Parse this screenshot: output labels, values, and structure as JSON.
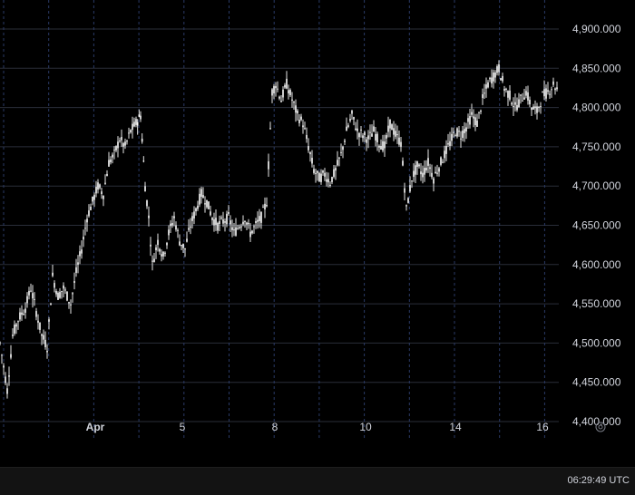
{
  "chart_data": {
    "type": "candlestick",
    "title": "",
    "xlabel": "",
    "ylabel": "",
    "y_ticks": [
      4400,
      4450,
      4500,
      4550,
      4600,
      4650,
      4700,
      4750,
      4800,
      4850,
      4900
    ],
    "y_tick_labels": [
      "4,400.000",
      "4,450.000",
      "4,500.000",
      "4,550.000",
      "4,600.000",
      "4,650.000",
      "4,700.000",
      "4,750.000",
      "4,800.000",
      "4,850.000",
      "4,900.000"
    ],
    "ylim": [
      4385,
      4915
    ],
    "x_ticks": [
      "Apr",
      "5",
      "8",
      "10",
      "14",
      "16"
    ],
    "x_tick_major": [
      "Apr"
    ],
    "xlim": [
      0,
      616
    ],
    "x_tick_positions": [
      105,
      201,
      303,
      403,
      502,
      598
    ],
    "grid": true,
    "series": [
      {
        "values": [
          {
            "t": 0,
            "c": 4500
          },
          {
            "t": 8,
            "c": 4440
          },
          {
            "t": 14,
            "c": 4510
          },
          {
            "t": 20,
            "c": 4530
          },
          {
            "t": 28,
            "c": 4545
          },
          {
            "t": 34,
            "c": 4570
          },
          {
            "t": 40,
            "c": 4540
          },
          {
            "t": 46,
            "c": 4510
          },
          {
            "t": 52,
            "c": 4495
          },
          {
            "t": 58,
            "c": 4585
          },
          {
            "t": 64,
            "c": 4560
          },
          {
            "t": 70,
            "c": 4570
          },
          {
            "t": 78,
            "c": 4550
          },
          {
            "t": 84,
            "c": 4590
          },
          {
            "t": 90,
            "c": 4620
          },
          {
            "t": 96,
            "c": 4660
          },
          {
            "t": 102,
            "c": 4680
          },
          {
            "t": 108,
            "c": 4700
          },
          {
            "t": 114,
            "c": 4690
          },
          {
            "t": 120,
            "c": 4730
          },
          {
            "t": 126,
            "c": 4740
          },
          {
            "t": 132,
            "c": 4760
          },
          {
            "t": 138,
            "c": 4750
          },
          {
            "t": 144,
            "c": 4770
          },
          {
            "t": 150,
            "c": 4780
          },
          {
            "t": 155,
            "c": 4790
          },
          {
            "t": 160,
            "c": 4700
          },
          {
            "t": 164,
            "c": 4660
          },
          {
            "t": 168,
            "c": 4600
          },
          {
            "t": 174,
            "c": 4630
          },
          {
            "t": 180,
            "c": 4610
          },
          {
            "t": 186,
            "c": 4640
          },
          {
            "t": 192,
            "c": 4660
          },
          {
            "t": 198,
            "c": 4630
          },
          {
            "t": 204,
            "c": 4620
          },
          {
            "t": 210,
            "c": 4650
          },
          {
            "t": 216,
            "c": 4670
          },
          {
            "t": 222,
            "c": 4690
          },
          {
            "t": 228,
            "c": 4680
          },
          {
            "t": 234,
            "c": 4660
          },
          {
            "t": 240,
            "c": 4650
          },
          {
            "t": 246,
            "c": 4655
          },
          {
            "t": 252,
            "c": 4660
          },
          {
            "t": 258,
            "c": 4640
          },
          {
            "t": 264,
            "c": 4650
          },
          {
            "t": 270,
            "c": 4660
          },
          {
            "t": 276,
            "c": 4640
          },
          {
            "t": 282,
            "c": 4650
          },
          {
            "t": 288,
            "c": 4660
          },
          {
            "t": 294,
            "c": 4680
          },
          {
            "t": 300,
            "c": 4820
          },
          {
            "t": 304,
            "c": 4830
          },
          {
            "t": 310,
            "c": 4810
          },
          {
            "t": 316,
            "c": 4830
          },
          {
            "t": 322,
            "c": 4810
          },
          {
            "t": 328,
            "c": 4790
          },
          {
            "t": 334,
            "c": 4780
          },
          {
            "t": 340,
            "c": 4750
          },
          {
            "t": 346,
            "c": 4720
          },
          {
            "t": 352,
            "c": 4710
          },
          {
            "t": 358,
            "c": 4715
          },
          {
            "t": 364,
            "c": 4705
          },
          {
            "t": 370,
            "c": 4720
          },
          {
            "t": 376,
            "c": 4740
          },
          {
            "t": 382,
            "c": 4770
          },
          {
            "t": 388,
            "c": 4790
          },
          {
            "t": 394,
            "c": 4770
          },
          {
            "t": 400,
            "c": 4765
          },
          {
            "t": 406,
            "c": 4760
          },
          {
            "t": 412,
            "c": 4770
          },
          {
            "t": 418,
            "c": 4755
          },
          {
            "t": 424,
            "c": 4750
          },
          {
            "t": 430,
            "c": 4780
          },
          {
            "t": 436,
            "c": 4765
          },
          {
            "t": 442,
            "c": 4755
          },
          {
            "t": 448,
            "c": 4670
          },
          {
            "t": 454,
            "c": 4710
          },
          {
            "t": 460,
            "c": 4725
          },
          {
            "t": 466,
            "c": 4715
          },
          {
            "t": 472,
            "c": 4730
          },
          {
            "t": 478,
            "c": 4710
          },
          {
            "t": 484,
            "c": 4725
          },
          {
            "t": 490,
            "c": 4740
          },
          {
            "t": 496,
            "c": 4755
          },
          {
            "t": 502,
            "c": 4770
          },
          {
            "t": 508,
            "c": 4765
          },
          {
            "t": 514,
            "c": 4775
          },
          {
            "t": 520,
            "c": 4790
          },
          {
            "t": 526,
            "c": 4780
          },
          {
            "t": 532,
            "c": 4810
          },
          {
            "t": 538,
            "c": 4830
          },
          {
            "t": 544,
            "c": 4840
          },
          {
            "t": 550,
            "c": 4850
          },
          {
            "t": 556,
            "c": 4825
          },
          {
            "t": 562,
            "c": 4815
          },
          {
            "t": 568,
            "c": 4800
          },
          {
            "t": 574,
            "c": 4810
          },
          {
            "t": 580,
            "c": 4820
          },
          {
            "t": 586,
            "c": 4800
          },
          {
            "t": 592,
            "c": 4795
          },
          {
            "t": 598,
            "c": 4815
          },
          {
            "t": 604,
            "c": 4820
          },
          {
            "t": 610,
            "c": 4830
          },
          {
            "t": 616,
            "c": 4820
          }
        ]
      }
    ]
  },
  "status_bar": {
    "clock": "06:29:49 UTC"
  }
}
